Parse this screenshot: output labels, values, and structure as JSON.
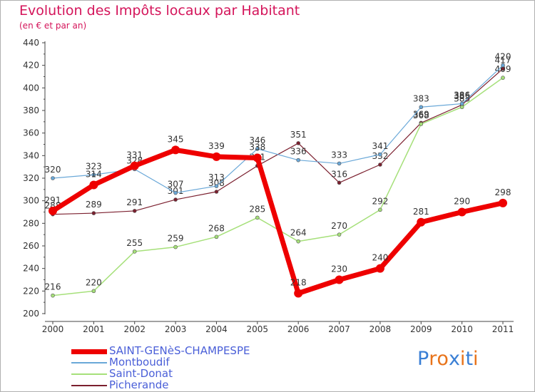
{
  "chart_data": {
    "type": "line",
    "title": "Evolution des Impôts locaux par Habitant",
    "subtitle": "(en € et par an)",
    "xlabel": "",
    "ylabel": "",
    "x": [
      "2000",
      "2001",
      "2002",
      "2003",
      "2004",
      "2005",
      "2006",
      "2007",
      "2008",
      "2009",
      "2010",
      "2011"
    ],
    "ylim": [
      200,
      440
    ],
    "yticks": [
      200,
      220,
      240,
      260,
      280,
      300,
      320,
      340,
      360,
      380,
      400,
      420,
      440
    ],
    "grid": false,
    "legend_position": "bottom-left",
    "series": [
      {
        "name": "Picherande",
        "color": "#7b1f2e",
        "width": 1.2,
        "marker": 5,
        "values": [
          288,
          289,
          291,
          301,
          308,
          331,
          351,
          316,
          332,
          369,
          385,
          417
        ]
      },
      {
        "name": "Saint-Donat",
        "color": "#a6e07a",
        "width": 1.5,
        "marker": 5,
        "values": [
          216,
          220,
          255,
          259,
          268,
          285,
          264,
          270,
          292,
          368,
          383,
          409
        ]
      },
      {
        "name": "Montboudif",
        "color": "#6aa8d8",
        "width": 1.2,
        "marker": 5,
        "values": [
          320,
          323,
          328,
          307,
          313,
          346,
          336,
          333,
          341,
          383,
          386,
          420
        ]
      },
      {
        "name": "SAINT-GENèS-CHAMPESPE",
        "color": "#ee0000",
        "width": 7,
        "marker": 12,
        "values": [
          291,
          314,
          331,
          345,
          339,
          338,
          218,
          230,
          240,
          281,
          290,
          298
        ]
      }
    ]
  },
  "legend": [
    {
      "label": "SAINT-GENèS-CHAMPESPE",
      "color": "#ee0000",
      "thickness": 7
    },
    {
      "label": "Montboudif",
      "color": "#6aa8d8",
      "thickness": 2
    },
    {
      "label": "Saint-Donat",
      "color": "#a6e07a",
      "thickness": 2
    },
    {
      "label": "Picherande",
      "color": "#7b1f2e",
      "thickness": 2
    }
  ],
  "logo": {
    "text": "Proxiti",
    "colors": [
      "#3a7fd5",
      "#e8731a",
      "#e8731a",
      "#3a7fd5",
      "#e8731a",
      "#3a7fd5",
      "#e8731a"
    ]
  }
}
